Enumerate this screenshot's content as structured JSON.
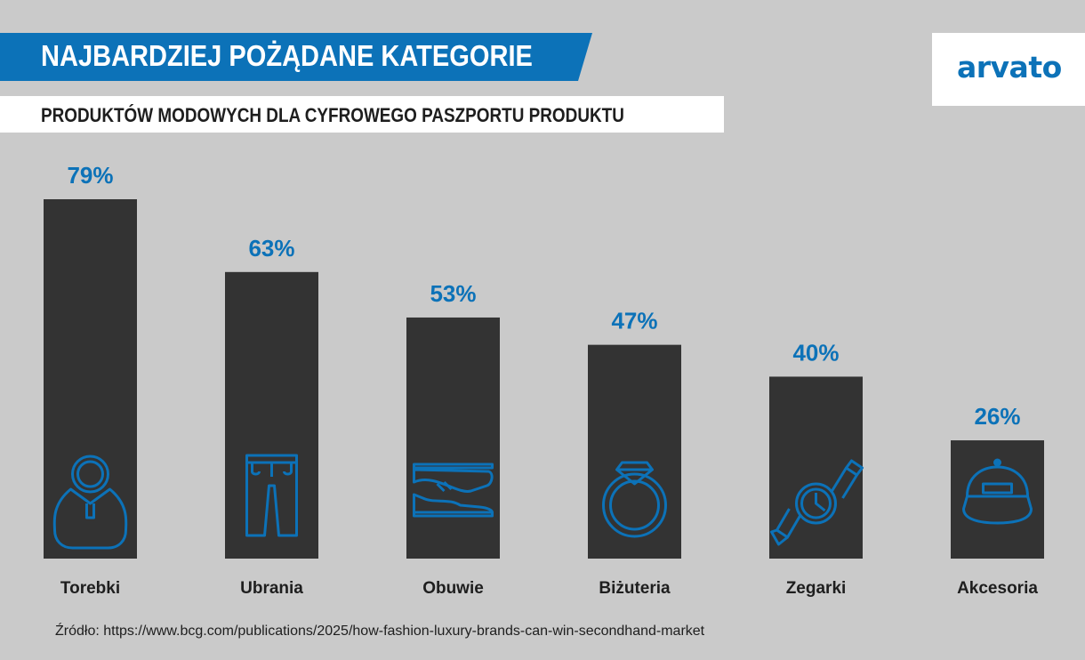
{
  "header": {
    "title": "NAJBARDZIEJ POŻĄDANE KATEGORIE",
    "subtitle": "PRODUKTÓW MODOWYCH DLA CYFROWEGO PASZPORTU PRODUKTU",
    "logo": "arvato"
  },
  "colors": {
    "accent": "#0c72b8",
    "bar": "#333333",
    "background": "#cacaca"
  },
  "chart_data": {
    "type": "bar",
    "categories": [
      "Torebki",
      "Ubrania",
      "Obuwie",
      "Biżuteria",
      "Zegarki",
      "Akcesoria"
    ],
    "values": [
      79,
      63,
      53,
      47,
      40,
      26
    ],
    "value_labels": [
      "79%",
      "63%",
      "53%",
      "47%",
      "40%",
      "26%"
    ],
    "icons": [
      "handbag-icon",
      "trousers-icon",
      "shoe-icon",
      "ring-icon",
      "wristwatch-icon",
      "cap-icon"
    ],
    "unit": "%",
    "ylim": [
      0,
      79
    ],
    "grid": false,
    "legend": "none"
  },
  "footer": {
    "source": "Źródło: https://www.bcg.com/publications/2025/how-fashion-luxury-brands-can-win-secondhand-market"
  }
}
